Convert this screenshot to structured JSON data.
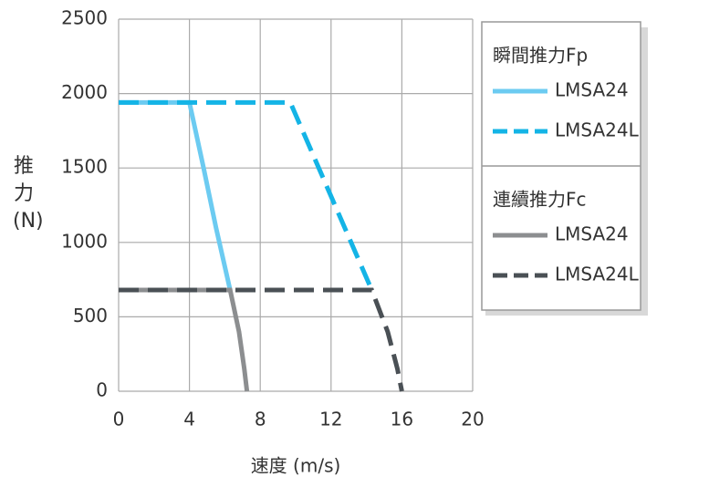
{
  "chart_data": {
    "type": "line",
    "x_label": "速度 (m/s)",
    "y_label": "推力(N)",
    "xlim": [
      0,
      20
    ],
    "xticks": [
      0,
      4,
      8,
      12,
      16,
      20
    ],
    "ylim": [
      0,
      2500
    ],
    "yticks": [
      0,
      500,
      1000,
      1500,
      2000,
      2500
    ],
    "grid": true,
    "legend_titles": [
      "瞬間推力Fp",
      "連續推力Fc"
    ],
    "series": [
      {
        "name": "LMSA24",
        "color": "#6ccbf1",
        "dashed": false,
        "x": [
          0,
          4,
          4.8,
          5.5,
          6.3
        ],
        "values": [
          1940,
          1940,
          1500,
          1100,
          680
        ]
      },
      {
        "name": "LMSA24L",
        "color": "#14b4e6",
        "dashed": true,
        "x": [
          0,
          9.7,
          14.3
        ],
        "values": [
          1940,
          1940,
          680
        ]
      },
      {
        "name": "LMSA24",
        "color": "#8c8e90",
        "dashed": false,
        "x": [
          0,
          6.3,
          6.8,
          7.1,
          7.25
        ],
        "values": [
          680,
          680,
          400,
          150,
          0
        ]
      },
      {
        "name": "LMSA24L",
        "color": "#4a5055",
        "dashed": true,
        "x": [
          0,
          14.3,
          15.2,
          15.75,
          16
        ],
        "values": [
          680,
          680,
          400,
          150,
          0
        ]
      }
    ]
  }
}
